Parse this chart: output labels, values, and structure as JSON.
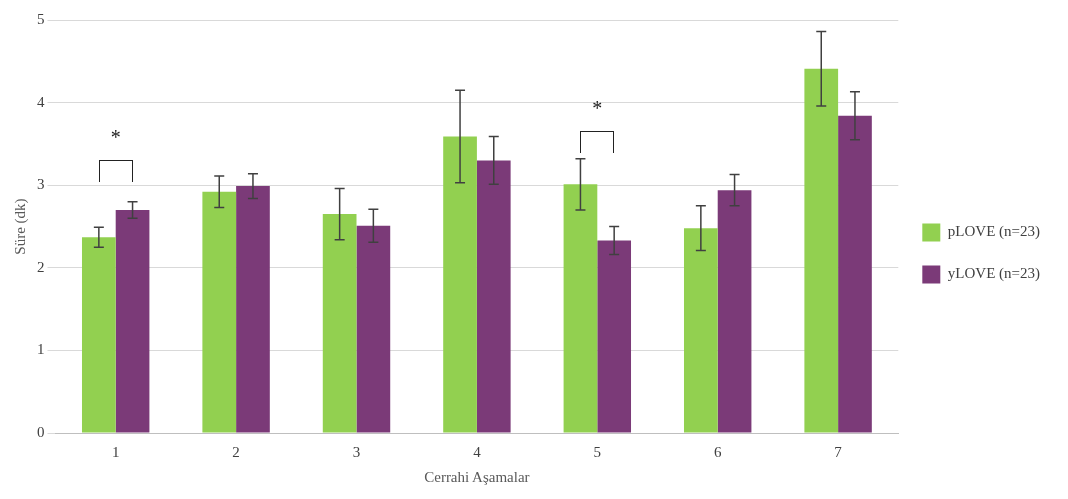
{
  "chart_data": {
    "type": "bar",
    "xlabel": "Cerrahi Aşamalar",
    "ylabel": "Süre (dk)",
    "categories": [
      "1",
      "2",
      "3",
      "4",
      "5",
      "6",
      "7"
    ],
    "series": [
      {
        "name": "pLOVE (n=23)",
        "color": "#92d050",
        "values": [
          2.37,
          2.92,
          2.65,
          3.59,
          3.01,
          2.48,
          4.41
        ],
        "errors": [
          0.12,
          0.19,
          0.31,
          0.56,
          0.31,
          0.27,
          0.45
        ]
      },
      {
        "name": "yLOVE (n=23)",
        "color": "#7b3a78",
        "values": [
          2.7,
          2.99,
          2.51,
          3.3,
          2.33,
          2.94,
          3.84
        ],
        "errors": [
          0.1,
          0.15,
          0.2,
          0.29,
          0.17,
          0.19,
          0.29
        ]
      }
    ],
    "ylim": [
      0,
      5
    ],
    "yticks": [
      0,
      1,
      2,
      3,
      4,
      5
    ],
    "grid": "y",
    "legend": "right",
    "annotations": [
      "*",
      "*"
    ]
  }
}
